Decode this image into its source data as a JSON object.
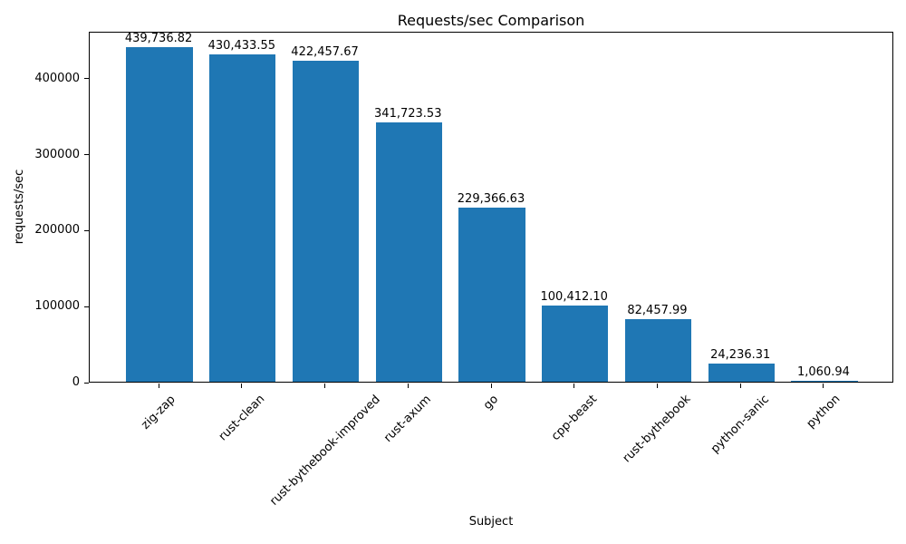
{
  "chart_data": {
    "type": "bar",
    "title": "Requests/sec Comparison",
    "xlabel": "Subject",
    "ylabel": "requests/sec",
    "categories": [
      "zig-zap",
      "rust-clean",
      "rust-bythebook-improved",
      "rust-axum",
      "go",
      "cpp-beast",
      "rust-bythebook",
      "python-sanic",
      "python"
    ],
    "values": [
      439736.82,
      430433.55,
      422457.67,
      341723.53,
      229366.63,
      100412.1,
      82457.99,
      24236.31,
      1060.94
    ],
    "bar_value_labels": [
      "439,736.82",
      "430,433.55",
      "422,457.67",
      "341,723.53",
      "229,366.63",
      "100,412.10",
      "82,457.99",
      "24,236.31",
      "1,060.94"
    ],
    "bar_color": "#1f77b4",
    "text_color": "#000000",
    "ylim": [
      0,
      461724
    ],
    "yticks": [
      0,
      100000,
      200000,
      300000,
      400000
    ],
    "ytick_labels": [
      "0",
      "100000",
      "200000",
      "300000",
      "400000"
    ],
    "xtick_rotation_deg": 45,
    "grid": false,
    "legend": "none"
  }
}
